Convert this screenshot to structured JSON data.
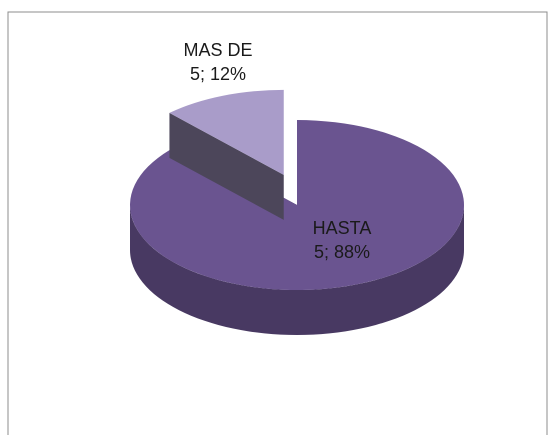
{
  "chart_data": {
    "type": "pie",
    "values": [
      88,
      12
    ],
    "value_labels": [
      "HASTA 5; 88%",
      "MAS DE 5; 12%"
    ],
    "colors": [
      "#6a5490",
      "#a99cc9"
    ]
  }
}
